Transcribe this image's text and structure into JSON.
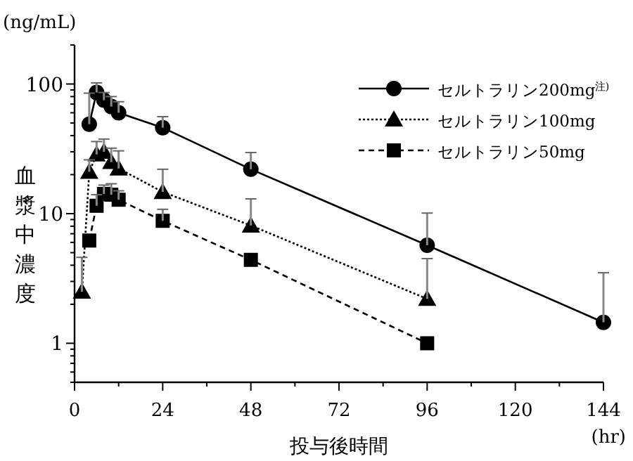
{
  "chart_data": {
    "type": "line",
    "xlabel": "投与後時間",
    "ylabel": "血漿中濃度",
    "annotations": [
      "(ng/mL)",
      "(hr)"
    ],
    "log": "y",
    "xlim": [
      0,
      144
    ],
    "xticks": [
      0,
      24,
      48,
      72,
      96,
      120,
      144
    ],
    "ylim": [
      0.5,
      200
    ],
    "yticks": [
      1,
      10,
      100
    ],
    "grid": false,
    "legend": "top right",
    "series": [
      {
        "name": "セルトラリン200mg$^{注)}$",
        "color": "#000000",
        "marker": "circle",
        "line_style": "solid",
        "x": [
          4,
          6,
          8,
          10,
          12,
          24,
          48,
          96,
          144
        ],
        "values": [
          49,
          86,
          75,
          67,
          60,
          46,
          22,
          5.7,
          1.45
        ],
        "errors": [
          [
            49,
            85
          ],
          [
            86,
            102
          ],
          [
            75,
            86
          ],
          [
            67,
            80
          ],
          [
            60,
            73
          ],
          [
            46,
            56
          ],
          [
            22,
            29.6
          ],
          [
            5.7,
            10.1
          ],
          [
            1.45,
            3.5
          ]
        ]
      },
      {
        "name": "セルトラリン100mg",
        "color": "#000000",
        "marker": "triangle",
        "line_style": "dotted",
        "x": [
          2,
          4,
          6,
          8,
          10,
          12,
          24,
          48,
          96
        ],
        "values": [
          2.5,
          21,
          28.6,
          30,
          25,
          22.3,
          14.7,
          8.1,
          2.2
        ],
        "errors": [
          [
            2.5,
            4.6
          ],
          [
            21,
            26
          ],
          [
            28.6,
            36
          ],
          [
            30,
            37.6
          ],
          [
            25,
            32
          ],
          [
            22.3,
            30.5
          ],
          [
            14.7,
            22
          ],
          [
            8.1,
            13
          ],
          [
            2.2,
            4.5
          ]
        ]
      },
      {
        "name": "セルトラリン50mg",
        "color": "#000000",
        "marker": "square",
        "line_style": "dashed",
        "x": [
          4,
          6,
          8,
          10,
          12,
          24,
          48,
          96
        ],
        "values": [
          6.2,
          11.5,
          14.2,
          14,
          12.8,
          8.8,
          4.4,
          1.0
        ],
        "errors": [
          null,
          [
            11.5,
            14
          ],
          [
            14.2,
            16.6
          ],
          [
            14,
            17
          ],
          [
            12.8,
            15
          ],
          [
            8.8,
            10.8
          ],
          null,
          null
        ]
      }
    ]
  }
}
